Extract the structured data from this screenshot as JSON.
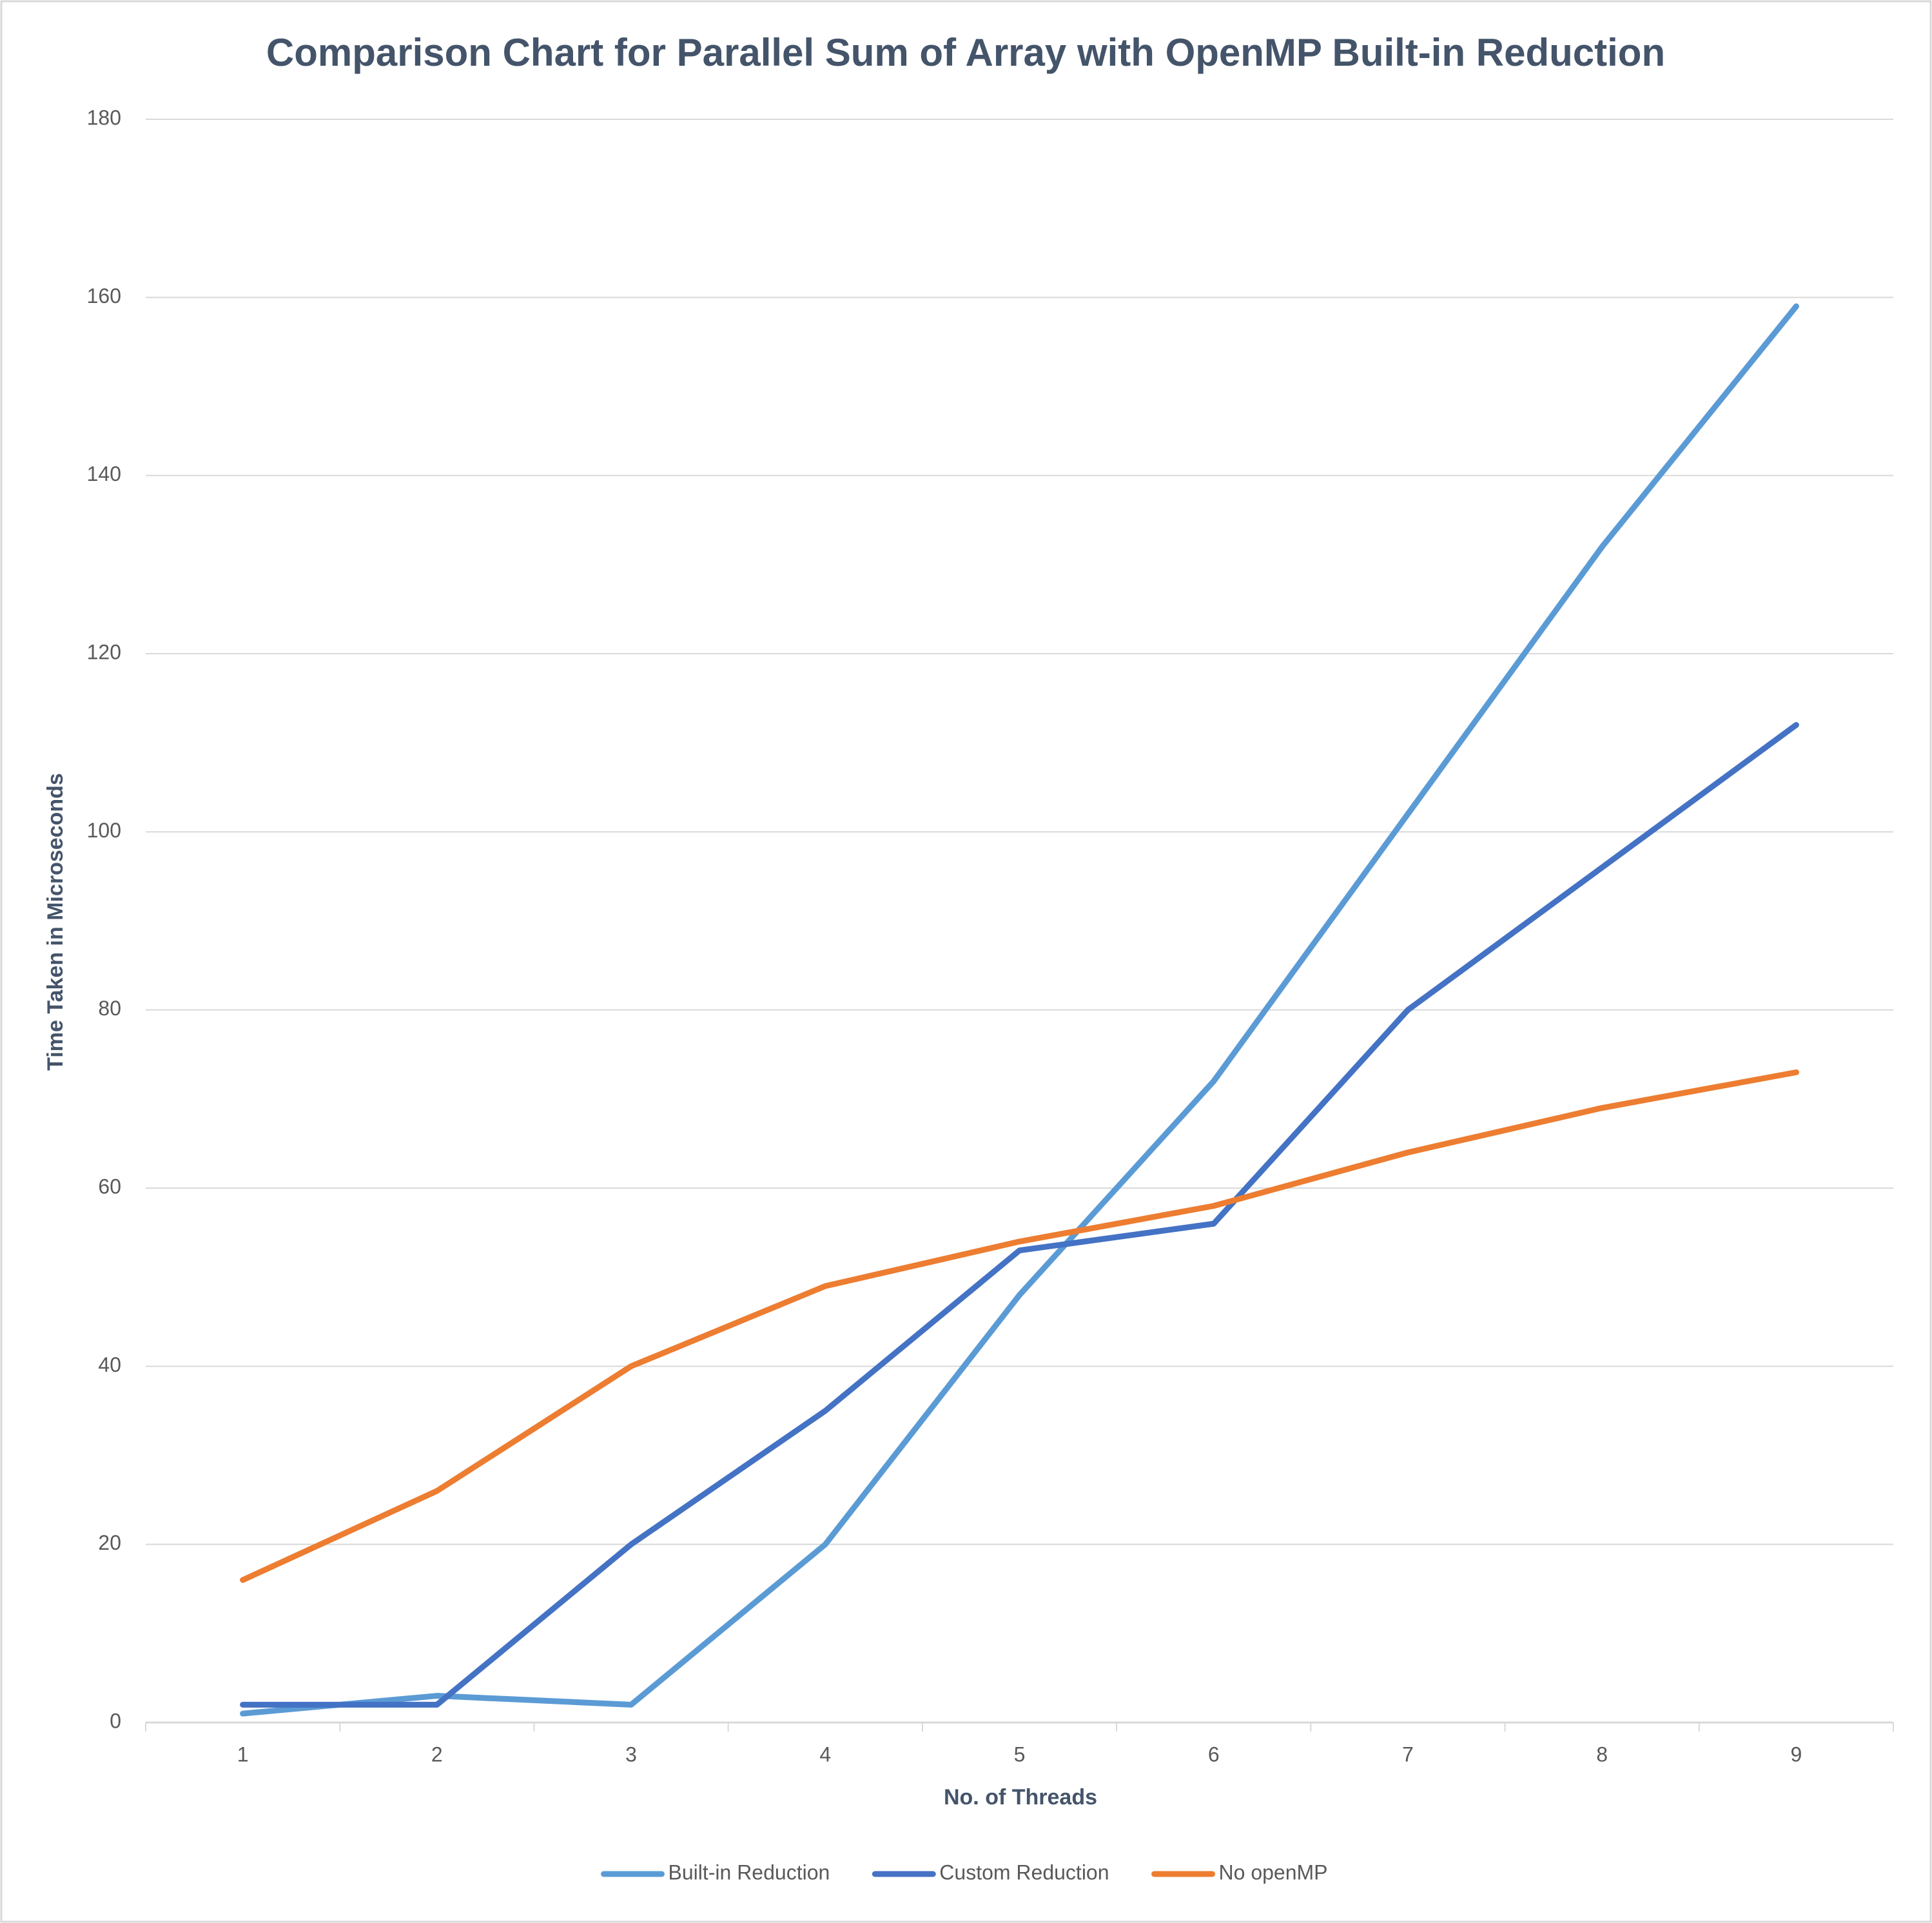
{
  "chart_data": {
    "type": "line",
    "title": "Comparison Chart for Parallel Sum of Array with OpenMP Built-in Reduction",
    "x_label": "No. of Threads",
    "y_label": "Time Taken in Microseconds",
    "categories": [
      "1",
      "2",
      "3",
      "4",
      "5",
      "6",
      "7",
      "8",
      "9"
    ],
    "series": [
      {
        "name": "Built-in Reduction",
        "color": "#5b9bd5",
        "values": [
          1,
          3,
          2,
          20,
          48,
          72,
          102,
          132,
          159
        ]
      },
      {
        "name": "Custom Reduction",
        "color": "#4472c4",
        "values": [
          2,
          2,
          20,
          35,
          53,
          56,
          80,
          96,
          112
        ]
      },
      {
        "name": "No openMP",
        "color": "#ed7d31",
        "values": [
          16,
          26,
          40,
          49,
          54,
          58,
          64,
          69,
          73
        ]
      }
    ],
    "ylim": [
      0,
      180
    ],
    "yticks": [
      0,
      20,
      40,
      60,
      80,
      100,
      120,
      140,
      160,
      180
    ],
    "grid": true,
    "legend": "bottom"
  }
}
